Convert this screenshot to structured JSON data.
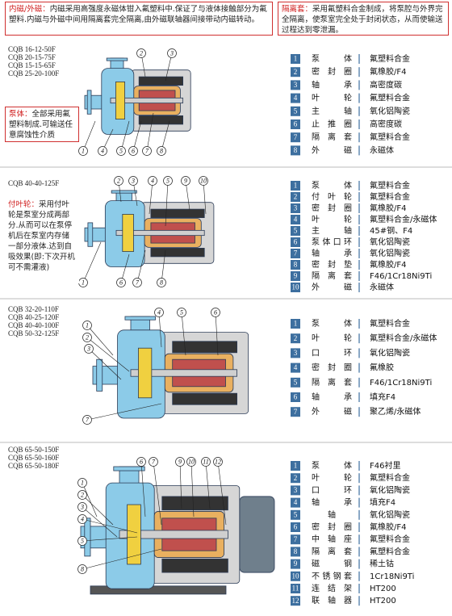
{
  "sections": [
    {
      "models": [
        "CQB 16-12-50F",
        "CQB 20-15-75F",
        "CQB 15-15-65F",
        "CQB 25-20-100F"
      ],
      "notes": [
        {
          "label": "内磁/外磁：",
          "text": "内磁采用高强度永磁体钳入氟塑料中.保证了与液体接触部分为氟塑料.内磁与外磁中间用隔离套完全隔离,由外磁联轴器间接带动内磁转动。"
        },
        {
          "label": "隔离套：",
          "text": "采用氟塑料合金制成，将泵腔与外界完全隔离，使泵室完全处于封闭状态，从而使输送过程达到零泄漏。"
        },
        {
          "label": "泵体：",
          "text": "全部采用氟塑料制成.可输送任意腐蚀性介质"
        }
      ],
      "callouts": [
        "2",
        "3",
        "1",
        "4",
        "5",
        "6",
        "7",
        "8"
      ],
      "parts": [
        {
          "no": "1",
          "name": "泵体",
          "material": "氟塑料合金"
        },
        {
          "no": "2",
          "name": "密封圈",
          "material": "氟橡胶/F4"
        },
        {
          "no": "3",
          "name": "轴承",
          "material": "高密度碳"
        },
        {
          "no": "4",
          "name": "叶轮",
          "material": "氟塑料合金"
        },
        {
          "no": "5",
          "name": "主轴",
          "material": "氧化铝陶瓷"
        },
        {
          "no": "6",
          "name": "止推圈",
          "material": "高密度碳"
        },
        {
          "no": "7",
          "name": "隔离套",
          "material": "氟塑料合金"
        },
        {
          "no": "8",
          "name": "外磁",
          "material": "永磁体"
        }
      ]
    },
    {
      "models": [
        "CQB 40-40-125F"
      ],
      "notes": [
        {
          "label": "付叶轮：",
          "text": "采用付叶轮是泵室分成两部分.从而可以在泵停机后在泵室内存储一部分液体.达到自吸效果(即:下次开机可不需灌液)"
        }
      ],
      "callouts": [
        "2",
        "3",
        "4",
        "5",
        "9",
        "10",
        "1",
        "6",
        "7",
        "8"
      ],
      "parts": [
        {
          "no": "1",
          "name": "泵体",
          "material": "氟塑料合金"
        },
        {
          "no": "2",
          "name": "付叶轮",
          "material": "氟塑料合金"
        },
        {
          "no": "3",
          "name": "密封圈",
          "material": "氟橡胶/F4"
        },
        {
          "no": "4",
          "name": "叶轮",
          "material": "氟塑料合金/永磁体"
        },
        {
          "no": "5",
          "name": "主轴",
          "material": "45#钢、F4"
        },
        {
          "no": "6",
          "name": "泵体口环",
          "material": "氧化铝陶瓷"
        },
        {
          "no": "7",
          "name": "轴承",
          "material": "氧化铝陶瓷"
        },
        {
          "no": "8",
          "name": "密封垫",
          "material": "氟橡胶/F4"
        },
        {
          "no": "9",
          "name": "隔离套",
          "material": "F46/1Cr18Ni9Ti"
        },
        {
          "no": "10",
          "name": "外磁",
          "material": "永磁体"
        }
      ]
    },
    {
      "models": [
        "CQB 32-20-110F",
        "CQB 40-25-120F",
        "CQB 40-40-100F",
        "CQB 50-32-125F"
      ],
      "notes": [],
      "callouts": [
        "4",
        "5",
        "6",
        "1",
        "2",
        "3",
        "7"
      ],
      "parts": [
        {
          "no": "1",
          "name": "泵体",
          "material": "氟塑料合金"
        },
        {
          "no": "2",
          "name": "叶轮",
          "material": "氟塑料合金/永磁体"
        },
        {
          "no": "3",
          "name": "口环",
          "material": "氧化铝陶瓷"
        },
        {
          "no": "4",
          "name": "密封圈",
          "material": "氟橡胶"
        },
        {
          "no": "5",
          "name": "隔离套",
          "material": "F46/1Cr18Ni9Ti"
        },
        {
          "no": "6",
          "name": "轴承",
          "material": "填充F4"
        },
        {
          "no": "7",
          "name": "外磁",
          "material": "聚乙烯/永磁体"
        }
      ]
    },
    {
      "models": [
        "CQB 65-50-150F",
        "CQB 65-50-160F",
        "CQB 65-50-180F"
      ],
      "notes": [],
      "callouts": [
        "6",
        "7",
        "9",
        "10",
        "11",
        "12",
        "1",
        "2",
        "3",
        "4",
        "5",
        "8"
      ],
      "parts": [
        {
          "no": "1",
          "name": "泵体",
          "material": "F46衬里"
        },
        {
          "no": "2",
          "name": "叶轮",
          "material": "氟塑料合金"
        },
        {
          "no": "3",
          "name": "口环",
          "material": "氧化铝陶瓷"
        },
        {
          "no": "4",
          "name": "轴承",
          "material": "填充F4"
        },
        {
          "no": "5",
          "name": "轴",
          "material": "氧化铝陶瓷"
        },
        {
          "no": "6",
          "name": "密封圈",
          "material": "氟橡胶/F4"
        },
        {
          "no": "7",
          "name": "中轴座",
          "material": "氟塑料合金"
        },
        {
          "no": "8",
          "name": "隔离套",
          "material": "氟塑料合金"
        },
        {
          "no": "9",
          "name": "磁钢",
          "material": "稀土钴"
        },
        {
          "no": "10",
          "name": "不锈钢套",
          "material": "1Cr18Ni9Ti"
        },
        {
          "no": "11",
          "name": "连结架",
          "material": "HT200"
        },
        {
          "no": "12",
          "name": "联轴器",
          "material": "HT200"
        }
      ]
    }
  ]
}
